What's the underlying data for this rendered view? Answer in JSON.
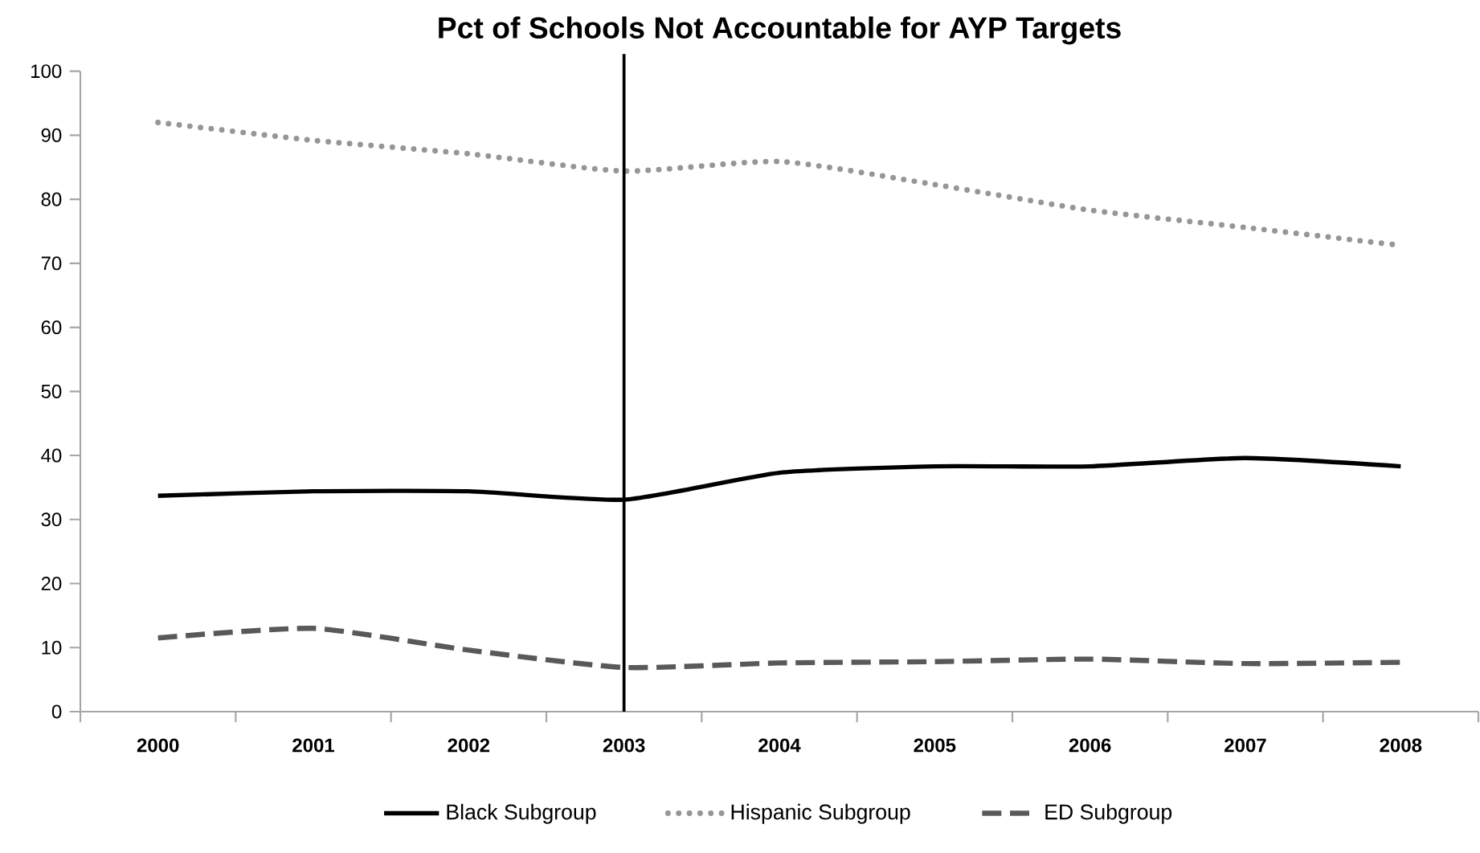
{
  "chart_data": {
    "type": "line",
    "title": "Pct of Schools Not Accountable for AYP Targets",
    "categories": [
      "2000",
      "2001",
      "2002",
      "2003",
      "2004",
      "2005",
      "2006",
      "2007",
      "2008"
    ],
    "series": [
      {
        "name": "Black Subgroup",
        "color": "#000000",
        "line_style": "solid",
        "values": [
          33.7,
          34.4,
          34.4,
          33.1,
          37.3,
          38.3,
          38.3,
          39.6,
          38.3
        ]
      },
      {
        "name": "Hispanic Subgroup",
        "color": "#969696",
        "line_style": "dotted",
        "values": [
          92,
          89.2,
          87.1,
          84.4,
          85.9,
          82.3,
          78.3,
          75.6,
          72.8
        ]
      },
      {
        "name": "ED Subgroup",
        "color": "#595959",
        "line_style": "dashed",
        "values": [
          11.5,
          13,
          9.6,
          6.9,
          7.6,
          7.8,
          8.2,
          7.5,
          7.7
        ]
      }
    ],
    "ylim": [
      0,
      100
    ],
    "yticks": [
      0,
      10,
      20,
      30,
      40,
      50,
      60,
      70,
      80,
      90,
      100
    ],
    "ref_lines": [
      {
        "axis": "x",
        "value": "2003",
        "color": "#000000"
      }
    ],
    "legend": "bottom",
    "grid": false,
    "marker": "none"
  }
}
